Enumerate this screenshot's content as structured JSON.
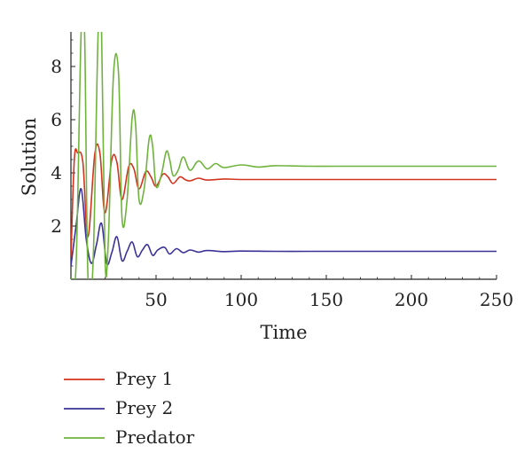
{
  "chart_data": {
    "type": "line",
    "xlabel": "Time",
    "ylabel": "Solution",
    "xlim": [
      0,
      250
    ],
    "ylim": [
      0,
      9.3
    ],
    "xticks": [
      50,
      100,
      150,
      200,
      250
    ],
    "yticks": [
      2,
      4,
      6,
      8
    ],
    "grid": false,
    "legend_position": "bottom-left",
    "series": [
      {
        "name": "Prey 1",
        "color": "#d2351f",
        "equilibrium": 3.75,
        "x": [
          0,
          2,
          4,
          7,
          10,
          14,
          17,
          20,
          24,
          27,
          30,
          34,
          37,
          40,
          44,
          47,
          50,
          54,
          57,
          60,
          64,
          67,
          70,
          75,
          80,
          90,
          100,
          120,
          140,
          160,
          200,
          250
        ],
        "y": [
          0.8,
          4.5,
          4.75,
          4.4,
          1.6,
          4.7,
          4.75,
          2.5,
          4.5,
          4.4,
          3.0,
          4.25,
          4.15,
          3.4,
          4.05,
          3.85,
          3.5,
          3.95,
          3.85,
          3.6,
          3.85,
          3.75,
          3.7,
          3.8,
          3.73,
          3.77,
          3.75,
          3.75,
          3.75,
          3.75,
          3.75,
          3.75
        ]
      },
      {
        "name": "Prey 2",
        "color": "#3a3296",
        "equilibrium": 1.05,
        "x": [
          0,
          3,
          6,
          9,
          12,
          15,
          18,
          21,
          24,
          27,
          30,
          33,
          36,
          39,
          42,
          45,
          48,
          51,
          55,
          58,
          62,
          66,
          70,
          75,
          80,
          90,
          100,
          120,
          140,
          160,
          200,
          250
        ],
        "y": [
          0.5,
          2.0,
          3.4,
          1.5,
          0.6,
          1.3,
          2.1,
          0.6,
          1.0,
          1.6,
          0.7,
          1.05,
          1.4,
          0.85,
          1.1,
          1.3,
          0.9,
          1.1,
          1.2,
          0.95,
          1.15,
          1.0,
          1.1,
          1.02,
          1.08,
          1.04,
          1.06,
          1.05,
          1.05,
          1.05,
          1.05,
          1.05
        ]
      },
      {
        "name": "Predator",
        "color": "#6fb33d",
        "equilibrium": 4.25,
        "x": [
          0,
          3,
          6,
          8,
          10,
          13,
          16,
          18,
          20,
          22,
          25,
          28,
          30,
          33,
          36,
          38,
          40,
          43,
          46,
          48,
          50,
          53,
          56,
          58,
          60,
          63,
          66,
          70,
          75,
          80,
          85,
          90,
          100,
          110,
          120,
          140,
          160,
          200,
          250
        ],
        "y": [
          0.05,
          0.5,
          9.3,
          9.3,
          0.1,
          0.6,
          9.3,
          9.3,
          0.8,
          1.5,
          7.7,
          7.7,
          2.3,
          3.0,
          6.1,
          5.8,
          3.0,
          3.4,
          5.3,
          5.0,
          3.5,
          3.9,
          4.8,
          4.5,
          3.9,
          4.1,
          4.6,
          4.1,
          4.45,
          4.15,
          4.35,
          4.2,
          4.3,
          4.22,
          4.27,
          4.25,
          4.25,
          4.25,
          4.25
        ]
      }
    ]
  }
}
